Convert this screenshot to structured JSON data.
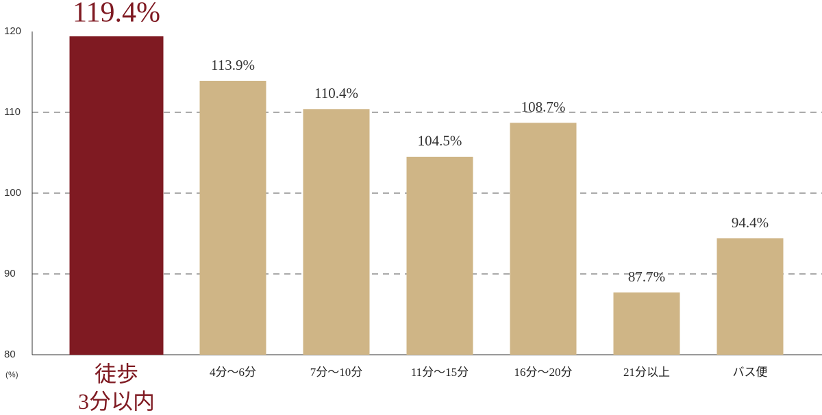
{
  "chart_data": {
    "type": "bar",
    "categories": [
      "徒歩\n3分以内",
      "4分〜6分",
      "7分〜10分",
      "11分〜15分",
      "16分〜20分",
      "21分以上",
      "バス便"
    ],
    "values": [
      119.4,
      113.9,
      110.4,
      104.5,
      108.7,
      87.7,
      94.4
    ],
    "value_labels": [
      "119.4%",
      "113.9%",
      "110.4%",
      "104.5%",
      "108.7%",
      "87.7%",
      "94.4%"
    ],
    "colors": [
      "#7f1a22",
      "#cfb586",
      "#cfb586",
      "#cfb586",
      "#cfb586",
      "#cfb586",
      "#cfb586"
    ],
    "ylim": [
      80,
      120
    ],
    "yticks": [
      80,
      90,
      100,
      110,
      120
    ],
    "y_unit": "(%)",
    "grid": true
  }
}
